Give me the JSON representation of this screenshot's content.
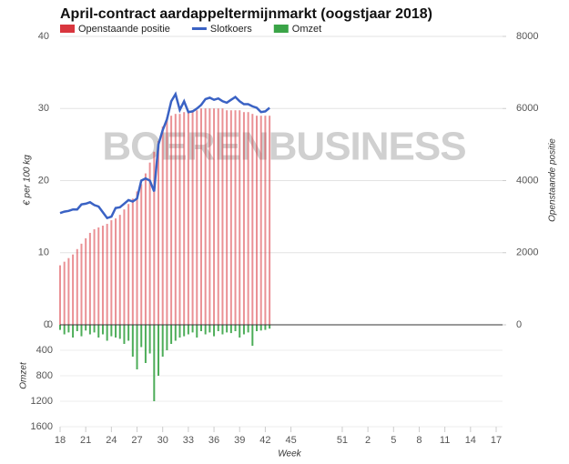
{
  "chart_data": {
    "type": "combo",
    "title": "April-contract aardappeltermijnmarkt (oogstjaar 2018)",
    "watermark": "BOERENBUSINESS",
    "x_label": "Week",
    "y_label": "€ per 100 kg",
    "y2_label": "Openstaande positie",
    "y3_label": "Omzet",
    "xlim": [
      18,
      69
    ],
    "xticks": [
      18,
      21,
      24,
      27,
      30,
      33,
      36,
      39,
      42,
      45,
      51,
      {
        "value": 54,
        "label": "2"
      },
      {
        "value": 57,
        "label": "5"
      },
      {
        "value": 60,
        "label": "8"
      },
      {
        "value": 63,
        "label": "11"
      },
      {
        "value": 66,
        "label": "14"
      },
      {
        "value": 69,
        "label": "17"
      }
    ],
    "ylim": [
      0,
      40
    ],
    "yticks": [
      0,
      10,
      20,
      30,
      40
    ],
    "y2lim": [
      0,
      8000
    ],
    "y2ticks": [
      0,
      2000,
      4000,
      6000,
      8000
    ],
    "y3lim": [
      0,
      1600
    ],
    "y3ticks": [
      0,
      400,
      800,
      1200,
      1600
    ],
    "grid": true,
    "x": [
      18,
      18.5,
      19,
      19.5,
      20,
      20.5,
      21,
      21.5,
      22,
      22.5,
      23,
      23.5,
      24,
      24.5,
      25,
      25.5,
      26,
      26.5,
      27,
      27.5,
      28,
      28.5,
      29,
      29.5,
      30,
      30.5,
      31,
      31.5,
      32,
      32.5,
      33,
      33.5,
      34,
      34.5,
      35,
      35.5,
      36,
      36.5,
      37,
      37.5,
      38,
      38.5,
      39,
      39.5,
      40,
      40.5,
      41,
      41.5,
      42,
      42.5
    ],
    "series": [
      {
        "name": "Openstaande positie",
        "color": "#d9363e",
        "kind": "bar",
        "axis": "y2",
        "values": [
          1650,
          1750,
          1850,
          1950,
          2100,
          2250,
          2400,
          2550,
          2650,
          2700,
          2750,
          2800,
          2900,
          2950,
          3050,
          3200,
          3350,
          3500,
          3700,
          3900,
          4200,
          4500,
          4800,
          5100,
          5500,
          5750,
          5800,
          5850,
          5850,
          5900,
          5900,
          5950,
          5950,
          6000,
          6000,
          6000,
          6000,
          6000,
          6000,
          5950,
          5950,
          5950,
          5950,
          5900,
          5900,
          5850,
          5800,
          5800,
          5800,
          5800
        ]
      },
      {
        "name": "Slotkoers",
        "color": "#3a62c4",
        "kind": "line",
        "axis": "y",
        "values": [
          15.5,
          15.7,
          15.8,
          16,
          16,
          16.7,
          16.8,
          17,
          16.6,
          16.4,
          15.6,
          14.8,
          15,
          16.2,
          16.3,
          16.8,
          17.3,
          17.1,
          17.5,
          20,
          20.3,
          20,
          18.5,
          25,
          27,
          28.5,
          31,
          32,
          29.8,
          31,
          29.5,
          29.6,
          30,
          30.5,
          31.3,
          31.5,
          31.2,
          31.4,
          31,
          30.8,
          31.2,
          31.6,
          31,
          30.6,
          30.6,
          30.3,
          30.1,
          29.5,
          29.6,
          30.1
        ]
      },
      {
        "name": "Omzet",
        "color": "#3aa447",
        "kind": "bar",
        "axis": "y3",
        "values": [
          80,
          150,
          120,
          200,
          100,
          180,
          90,
          150,
          120,
          200,
          150,
          250,
          180,
          200,
          220,
          300,
          250,
          500,
          700,
          350,
          600,
          450,
          1200,
          800,
          500,
          400,
          300,
          250,
          200,
          180,
          150,
          120,
          200,
          100,
          150,
          120,
          180,
          100,
          150,
          120,
          130,
          100,
          200,
          150,
          120,
          330,
          100,
          90,
          80,
          60
        ]
      }
    ]
  }
}
